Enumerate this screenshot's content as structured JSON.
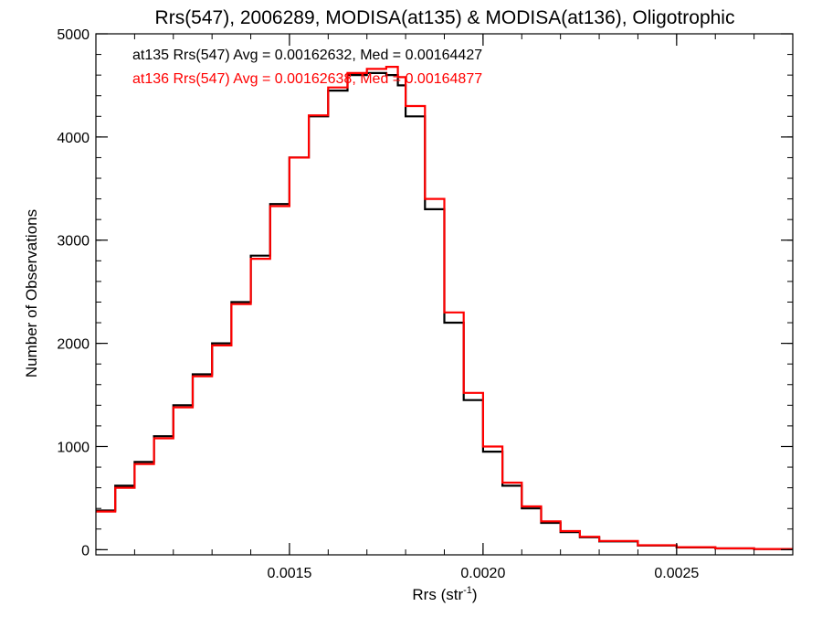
{
  "chart_data": {
    "type": "line",
    "step": true,
    "title": "Rrs(547), 2006289, MODISA(at135) & MODISA(at136), Oligotrophic",
    "xlabel": "Rrs (str",
    "xlabel_sup": "-1",
    "xlabel_end": ")",
    "ylabel": "Number of Observations",
    "xlim": [
      0.001,
      0.0028
    ],
    "ylim": [
      -50,
      5000
    ],
    "x_ticks": [
      0.0015,
      0.002,
      0.0025
    ],
    "x_tick_labels": [
      "0.0015",
      "0.0020",
      "0.0025"
    ],
    "x_minor_step": 0.0001,
    "y_ticks": [
      0,
      1000,
      2000,
      3000,
      4000,
      5000
    ],
    "y_tick_labels": [
      "0",
      "1000",
      "2000",
      "3000",
      "4000",
      "5000"
    ],
    "y_minor_step": 200,
    "grid": false,
    "legend": [
      {
        "text": "at135 Rrs(547) Avg = 0.00162632, Med = 0.00164427",
        "color": "#000000"
      },
      {
        "text": "at136 Rrs(547) Avg = 0.00162638, Med = 0.00164877",
        "color": "#ff0000"
      }
    ],
    "x": [
      0.001,
      0.00105,
      0.0011,
      0.00115,
      0.0012,
      0.00125,
      0.0013,
      0.00135,
      0.0014,
      0.00145,
      0.0015,
      0.00155,
      0.0016,
      0.00165,
      0.0017,
      0.00175,
      0.00178,
      0.0018,
      0.00185,
      0.0019,
      0.00195,
      0.002,
      0.00205,
      0.0021,
      0.00215,
      0.0022,
      0.00225,
      0.0023,
      0.0024,
      0.0025,
      0.0026,
      0.0027,
      0.0028
    ],
    "series": [
      {
        "name": "at135",
        "color": "#000000",
        "values": [
          380,
          620,
          850,
          1100,
          1400,
          1700,
          2000,
          2400,
          2850,
          3350,
          3800,
          4200,
          4450,
          4600,
          4620,
          4600,
          4500,
          4200,
          3300,
          2200,
          1450,
          950,
          620,
          400,
          260,
          170,
          120,
          80,
          40,
          22,
          12,
          6,
          3
        ]
      },
      {
        "name": "at136",
        "color": "#ff0000",
        "values": [
          370,
          600,
          830,
          1080,
          1380,
          1680,
          1980,
          2380,
          2820,
          3330,
          3800,
          4210,
          4480,
          4620,
          4660,
          4680,
          4580,
          4300,
          3400,
          2300,
          1520,
          1000,
          650,
          420,
          275,
          180,
          125,
          85,
          43,
          24,
          13,
          7,
          3
        ]
      }
    ]
  }
}
